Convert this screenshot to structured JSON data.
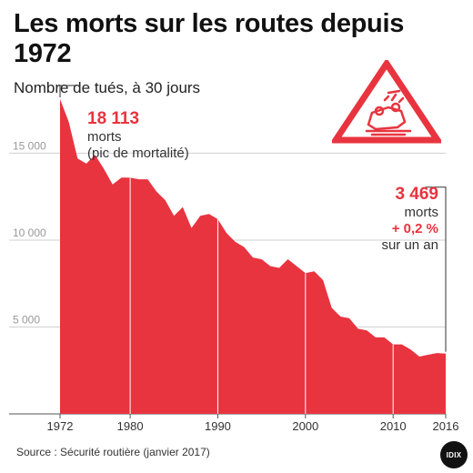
{
  "title": "Les morts sur les routes depuis 1972",
  "subtitle": "Nombre de tués, à 30 jours",
  "peak": {
    "value": "18 113",
    "unit": "morts",
    "note": "(pic de mortalité)"
  },
  "last": {
    "value": "3 469",
    "unit": "morts",
    "change": "+ 0,2 %",
    "change_note": "sur un an"
  },
  "source": "Source : Sécurité routière (janvier 2017)",
  "logo": "IDIX",
  "icon": "road-danger-triangle-icon",
  "colors": {
    "area": "#e8343f",
    "accent": "#e8343f",
    "grid": "#d0d0d0",
    "text": "#222222"
  },
  "chart_data": {
    "type": "area",
    "title": "Les morts sur les routes depuis 1972",
    "subtitle": "Nombre de tués, à 30 jours",
    "x": [
      1972,
      1973,
      1974,
      1975,
      1976,
      1977,
      1978,
      1979,
      1980,
      1981,
      1982,
      1983,
      1984,
      1985,
      1986,
      1987,
      1988,
      1989,
      1990,
      1991,
      1992,
      1993,
      1994,
      1995,
      1996,
      1997,
      1998,
      1999,
      2000,
      2001,
      2002,
      2003,
      2004,
      2005,
      2006,
      2007,
      2008,
      2009,
      2010,
      2011,
      2012,
      2013,
      2014,
      2015,
      2016
    ],
    "values": [
      18113,
      16800,
      14700,
      14400,
      14900,
      14100,
      13200,
      13600,
      13600,
      13500,
      13500,
      12800,
      12300,
      11400,
      11900,
      10700,
      11400,
      11500,
      11200,
      10400,
      9900,
      9600,
      9000,
      8900,
      8500,
      8400,
      8900,
      8500,
      8100,
      8200,
      7700,
      6100,
      5600,
      5500,
      4900,
      4800,
      4400,
      4400,
      4000,
      4000,
      3700,
      3300,
      3400,
      3500,
      3469
    ],
    "xticks": [
      "1972",
      "1980",
      "1990",
      "2000",
      "2010",
      "2016"
    ],
    "yticks": [
      "5 000",
      "10 000",
      "15 000"
    ],
    "ytick_values": [
      5000,
      10000,
      15000
    ],
    "xlim": [
      1972,
      2016
    ],
    "ylim": [
      0,
      19000
    ],
    "grid": true
  }
}
